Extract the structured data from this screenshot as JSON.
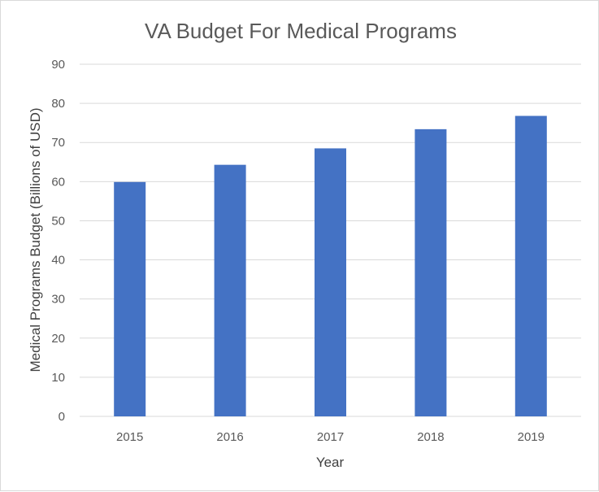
{
  "chart_data": {
    "type": "bar",
    "title": "VA Budget For Medical Programs",
    "xlabel": "Year",
    "ylabel": "Medical Programs Budget (Billions of USD)",
    "categories": [
      "2015",
      "2016",
      "2017",
      "2018",
      "2019"
    ],
    "values": [
      59.9,
      64.3,
      68.5,
      73.4,
      76.8
    ],
    "ylim": [
      0,
      90
    ],
    "yticks": [
      "0",
      "10",
      "20",
      "30",
      "40",
      "50",
      "60",
      "70",
      "80",
      "90"
    ],
    "grid": true,
    "legend": "none",
    "bar_color": "#4472c4"
  }
}
